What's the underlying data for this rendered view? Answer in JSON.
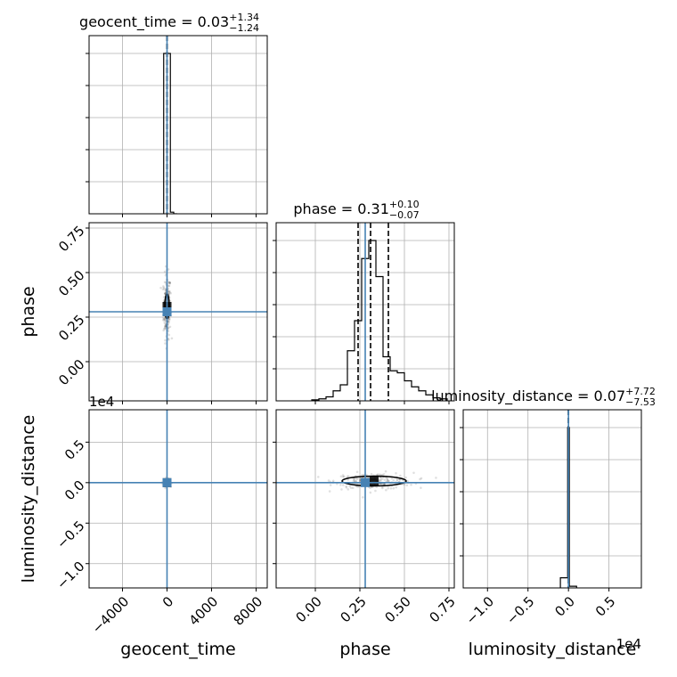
{
  "chart_data": {
    "type": "corner",
    "parameters": [
      "geocent_time",
      "phase",
      "luminosity_distance"
    ],
    "axis_labels": {
      "geocent_time": "geocent_time",
      "phase": "phase",
      "luminosity_distance": "luminosity_distance"
    },
    "truths": {
      "geocent_time": 0,
      "phase": 0.28,
      "luminosity_distance": 0
    },
    "truth_color": "#4682b4",
    "line_color": "#000000",
    "grid": true,
    "ranges": {
      "geocent_time": [
        -7000,
        9000
      ],
      "phase": [
        -0.22,
        0.78
      ],
      "luminosity_distance": [
        -1.3,
        0.9
      ]
    },
    "ticks": {
      "geocent_time": {
        "values": [
          -4000,
          0,
          4000,
          8000
        ],
        "labels": [
          "−4000",
          "0",
          "4000",
          "8000"
        ]
      },
      "phase": {
        "values": [
          0.0,
          0.25,
          0.5,
          0.75
        ],
        "labels": [
          "0.00",
          "0.25",
          "0.50",
          "0.75"
        ]
      },
      "luminosity_distance": {
        "values": [
          -1.0,
          -0.5,
          0.0,
          0.5
        ],
        "labels": [
          "−1.0",
          "−0.5",
          "0.0",
          "0.5"
        ]
      }
    },
    "offset_text": {
      "luminosity_distance": "1e4"
    },
    "titles": [
      {
        "param": "geocent_time",
        "base": "geocent_time = 0.03",
        "sup": "+1.34",
        "sub": "−1.24"
      },
      {
        "param": "phase",
        "base": "phase = 0.31",
        "sup": "+0.10",
        "sub": "−0.07"
      },
      {
        "param": "luminosity_distance",
        "base": "luminosity_distance = 0.07",
        "sup": "+7.72",
        "sub": "−7.53"
      }
    ],
    "histograms": {
      "geocent_time": {
        "edges": [
          -300,
          0,
          300,
          600,
          900
        ],
        "counts": [
          1.0,
          1.0,
          0.01,
          0.0
        ],
        "quantiles": [
          -1.24,
          0.03,
          1.34
        ]
      },
      "phase": {
        "edges": [
          -0.02,
          0.02,
          0.06,
          0.1,
          0.14,
          0.18,
          0.22,
          0.26,
          0.3,
          0.34,
          0.38,
          0.42,
          0.46,
          0.5,
          0.54,
          0.58,
          0.62,
          0.66,
          0.7,
          0.74
        ],
        "counts": [
          0.005,
          0.01,
          0.02,
          0.05,
          0.08,
          0.25,
          0.4,
          0.71,
          0.8,
          0.62,
          0.22,
          0.15,
          0.14,
          0.1,
          0.07,
          0.05,
          0.03,
          0.015,
          0.01
        ],
        "quantiles": [
          0.24,
          0.31,
          0.41
        ]
      },
      "luminosity_distance": {
        "edges": [
          -0.1,
          -0.01,
          0.01,
          0.1
        ],
        "counts": [
          0.06,
          0.95,
          0.01
        ],
        "quantiles": [
          -0.00075,
          7e-07,
          0.00077
        ]
      }
    },
    "joint": [
      {
        "x": "geocent_time",
        "y": "phase",
        "center": [
          0,
          0.31
        ],
        "spread": [
          160,
          0.09
        ],
        "contour": [
          60,
          0.07
        ]
      },
      {
        "x": "geocent_time",
        "y": "luminosity_distance",
        "center": [
          0,
          0.0
        ],
        "spread": [
          150,
          0.02
        ],
        "contour": [
          40,
          0.01
        ]
      },
      {
        "x": "phase",
        "y": "luminosity_distance",
        "center": [
          0.33,
          0.02
        ],
        "spread": [
          0.11,
          0.05
        ],
        "contour": [
          0.18,
          0.06
        ]
      }
    ]
  }
}
